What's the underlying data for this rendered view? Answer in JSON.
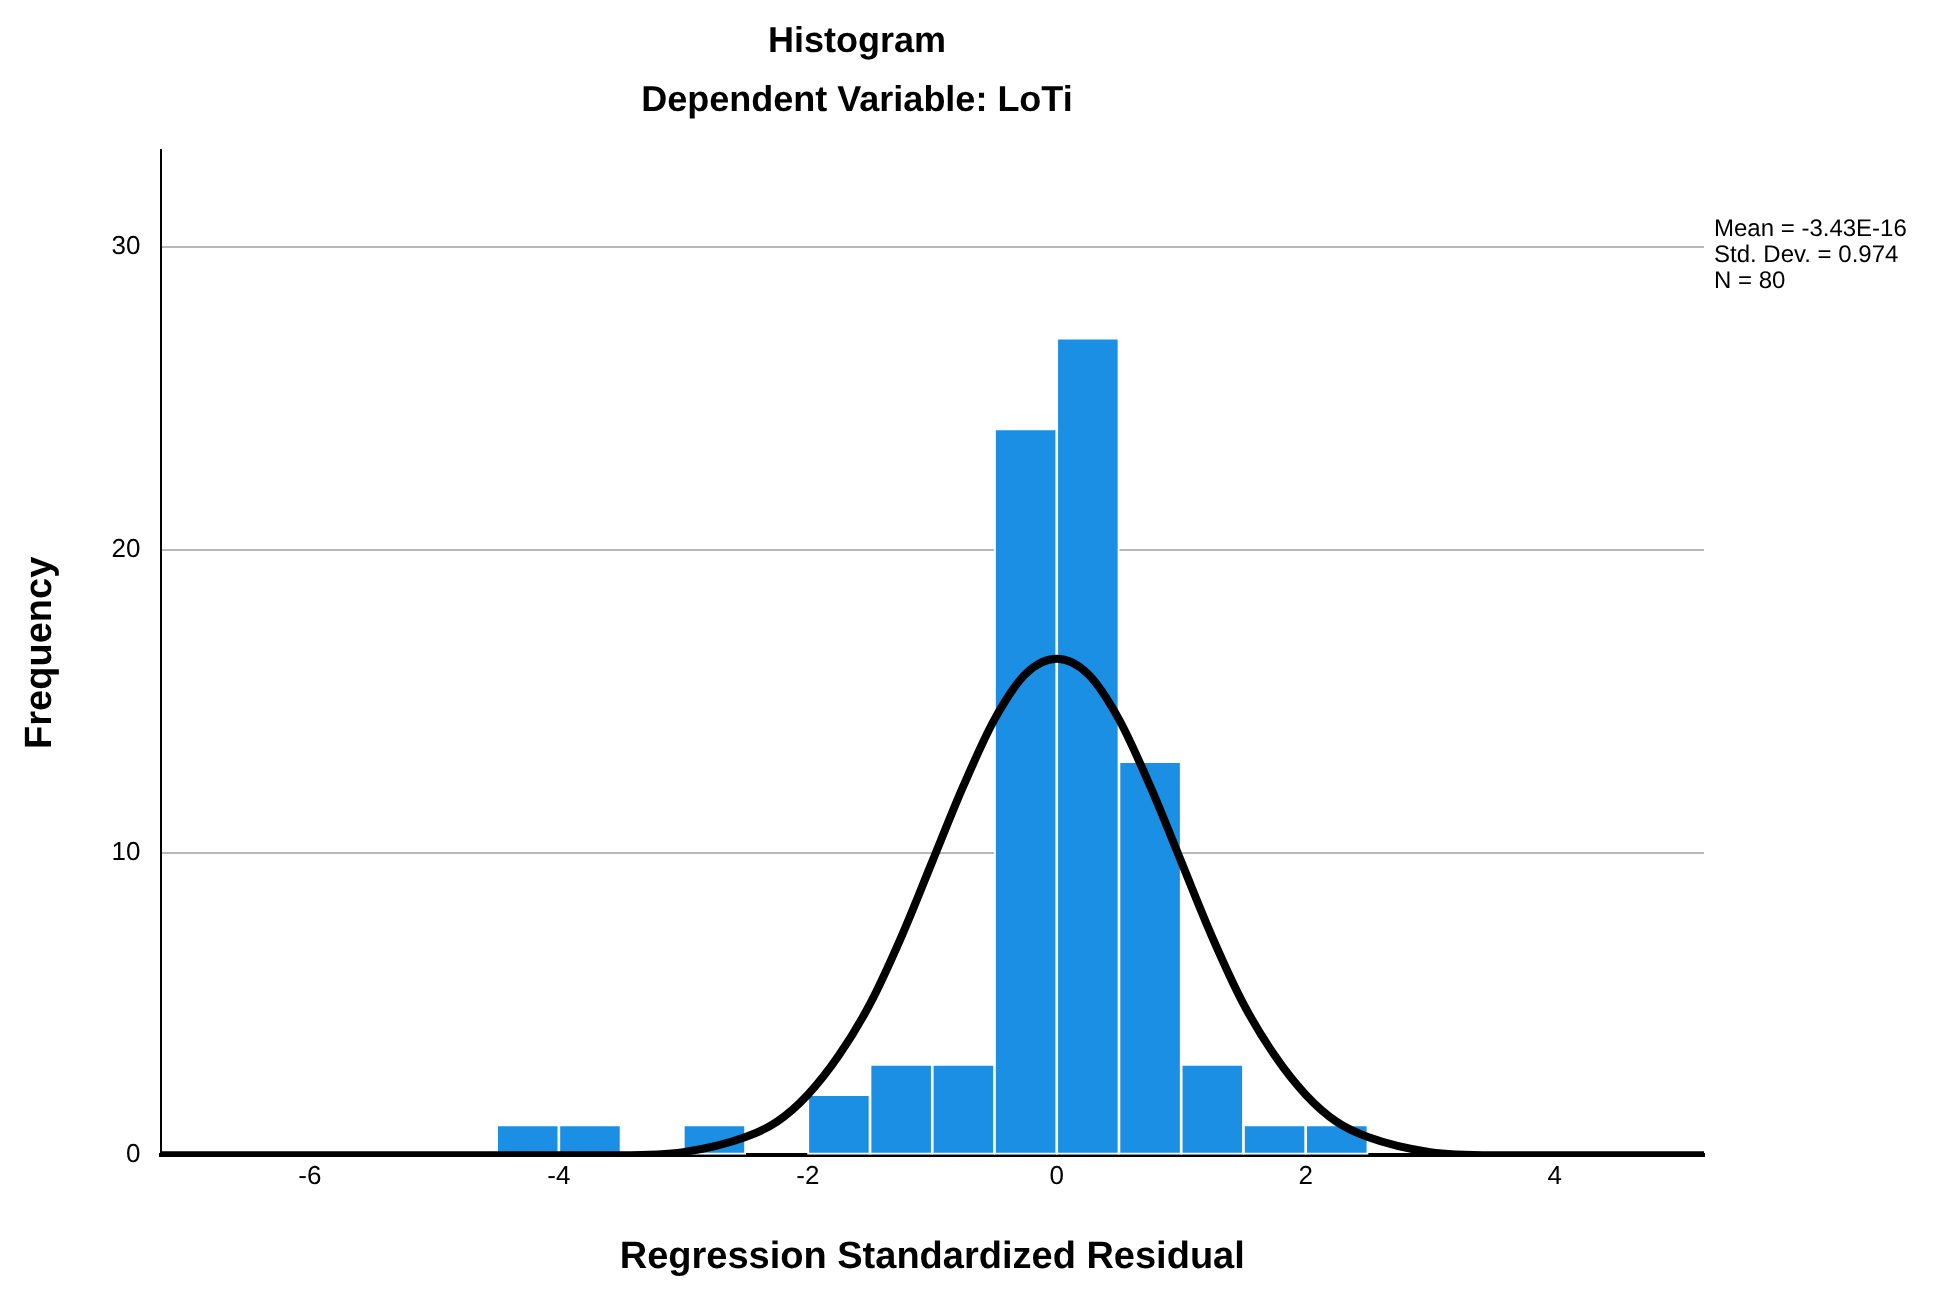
{
  "chart_data": {
    "type": "histogram",
    "title": "Histogram",
    "subtitle": "Dependent Variable: LoTi",
    "xlabel": "Regression Standardized Residual",
    "ylabel": "Frequency",
    "bins": [
      -4.5,
      -4,
      -3.5,
      -3,
      -2.5,
      -2,
      -1.5,
      -1,
      -0.5,
      0,
      0.5,
      1,
      1.5,
      2,
      2.5
    ],
    "values": [
      1,
      1,
      0,
      1,
      0,
      2,
      3,
      3,
      24,
      27,
      13,
      3,
      1,
      1
    ],
    "color": "#1a8fe3",
    "series": [
      {
        "type": "line",
        "color": "#000000",
        "x": [
          -7.2,
          -4,
          -3.5,
          -3,
          -2.5,
          -2.25,
          -2,
          -1.75,
          -1.5,
          -1.25,
          -1,
          -0.75,
          -0.5,
          -0.25,
          0,
          0.25,
          0.5,
          0.75,
          1,
          1.25,
          1.5,
          1.75,
          2,
          2.25,
          2.5,
          3,
          3.5,
          4,
          5.2
        ],
        "values": [
          0,
          0,
          0,
          0.1,
          0.6,
          1.1,
          2,
          3.3,
          5,
          7.2,
          9.7,
          12.2,
          14.4,
          15.9,
          16.4,
          15.9,
          14.4,
          12.2,
          9.7,
          7.2,
          5,
          3.3,
          2,
          1.1,
          0.6,
          0.1,
          0,
          0,
          0
        ]
      }
    ],
    "xlim": [
      -7.2,
      5.2
    ],
    "xticks": [
      -6,
      -4,
      -2,
      0,
      2,
      4
    ],
    "ylim": [
      0,
      33.2
    ],
    "yticks": [
      0,
      10,
      20,
      30
    ],
    "grid": "y",
    "legend": false,
    "marker": "none",
    "line_style": "solid",
    "annotations": [
      "Mean = -3.43E-16",
      "Std. Dev. = 0.974",
      "N = 80"
    ]
  }
}
